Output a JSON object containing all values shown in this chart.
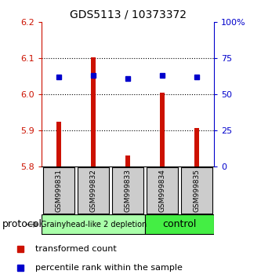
{
  "title": "GDS5113 / 10373372",
  "samples": [
    "GSM999831",
    "GSM999832",
    "GSM999833",
    "GSM999834",
    "GSM999835"
  ],
  "transformed_counts": [
    5.924,
    6.102,
    5.832,
    6.005,
    5.908
  ],
  "percentile_ranks": [
    62,
    63,
    61,
    63,
    62
  ],
  "ylim_left": [
    5.8,
    6.2
  ],
  "ylim_right": [
    0,
    100
  ],
  "yticks_left": [
    5.8,
    5.9,
    6.0,
    6.1,
    6.2
  ],
  "yticks_right": [
    0,
    25,
    50,
    75,
    100
  ],
  "ytick_labels_right": [
    "0",
    "25",
    "50",
    "75",
    "100%"
  ],
  "bar_color": "#cc1100",
  "dot_color": "#0000cc",
  "bar_bottom": 5.8,
  "groups": [
    {
      "label": "Grainyhead-like 2 depletion",
      "color": "#aaffaa"
    },
    {
      "label": "control",
      "color": "#44ee44"
    }
  ],
  "group_header": "protocol",
  "legend_items": [
    {
      "color": "#cc1100",
      "label": "transformed count"
    },
    {
      "color": "#0000cc",
      "label": "percentile rank within the sample"
    }
  ],
  "grid_yticks": [
    5.9,
    6.0,
    6.1
  ]
}
